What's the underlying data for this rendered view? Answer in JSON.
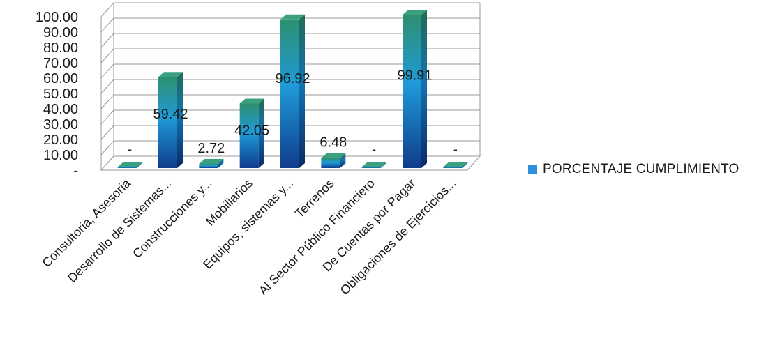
{
  "chart_data": {
    "type": "bar",
    "title": "",
    "xlabel": "",
    "ylabel": "",
    "ylim": [
      0,
      100
    ],
    "y_ticks": [
      "100.00",
      "90.00",
      "80.00",
      "70.00",
      "60.00",
      "50.00",
      "40.00",
      "30.00",
      "20.00",
      "10.00",
      "-"
    ],
    "y_tick_values": [
      100,
      90,
      80,
      70,
      60,
      50,
      40,
      30,
      20,
      10,
      0
    ],
    "grid": true,
    "legend_position": "right",
    "categories": [
      "Consultoria, Asesoria",
      "Desarrollo de Sistemas...",
      "Construcciones y...",
      "Mobiliarios",
      "Equipos, sistemas y...",
      "Terrenos",
      "Al Sector Público Financiero",
      "De Cuentas por Pagar",
      "Obligaciones de Ejercicios..."
    ],
    "series": [
      {
        "name": "PORCENTAJE CUMPLIMIENTO",
        "values": [
          0,
          59.42,
          2.72,
          42.05,
          96.92,
          6.48,
          0,
          99.91,
          0
        ],
        "data_labels": [
          "-",
          "59.42",
          "2.72",
          "42.05",
          "96.92",
          "6.48",
          "-",
          "99.91",
          "-"
        ]
      }
    ]
  },
  "colors": {
    "bar_top": "#2e8b6e",
    "bar_mid": "#1e9ad8",
    "bar_bottom": "#103c8c",
    "bar_side": "#0c2f6e",
    "legend_swatch": "#2f8fd8",
    "grid": "#9a9a9a",
    "text": "#1a1a1a"
  }
}
